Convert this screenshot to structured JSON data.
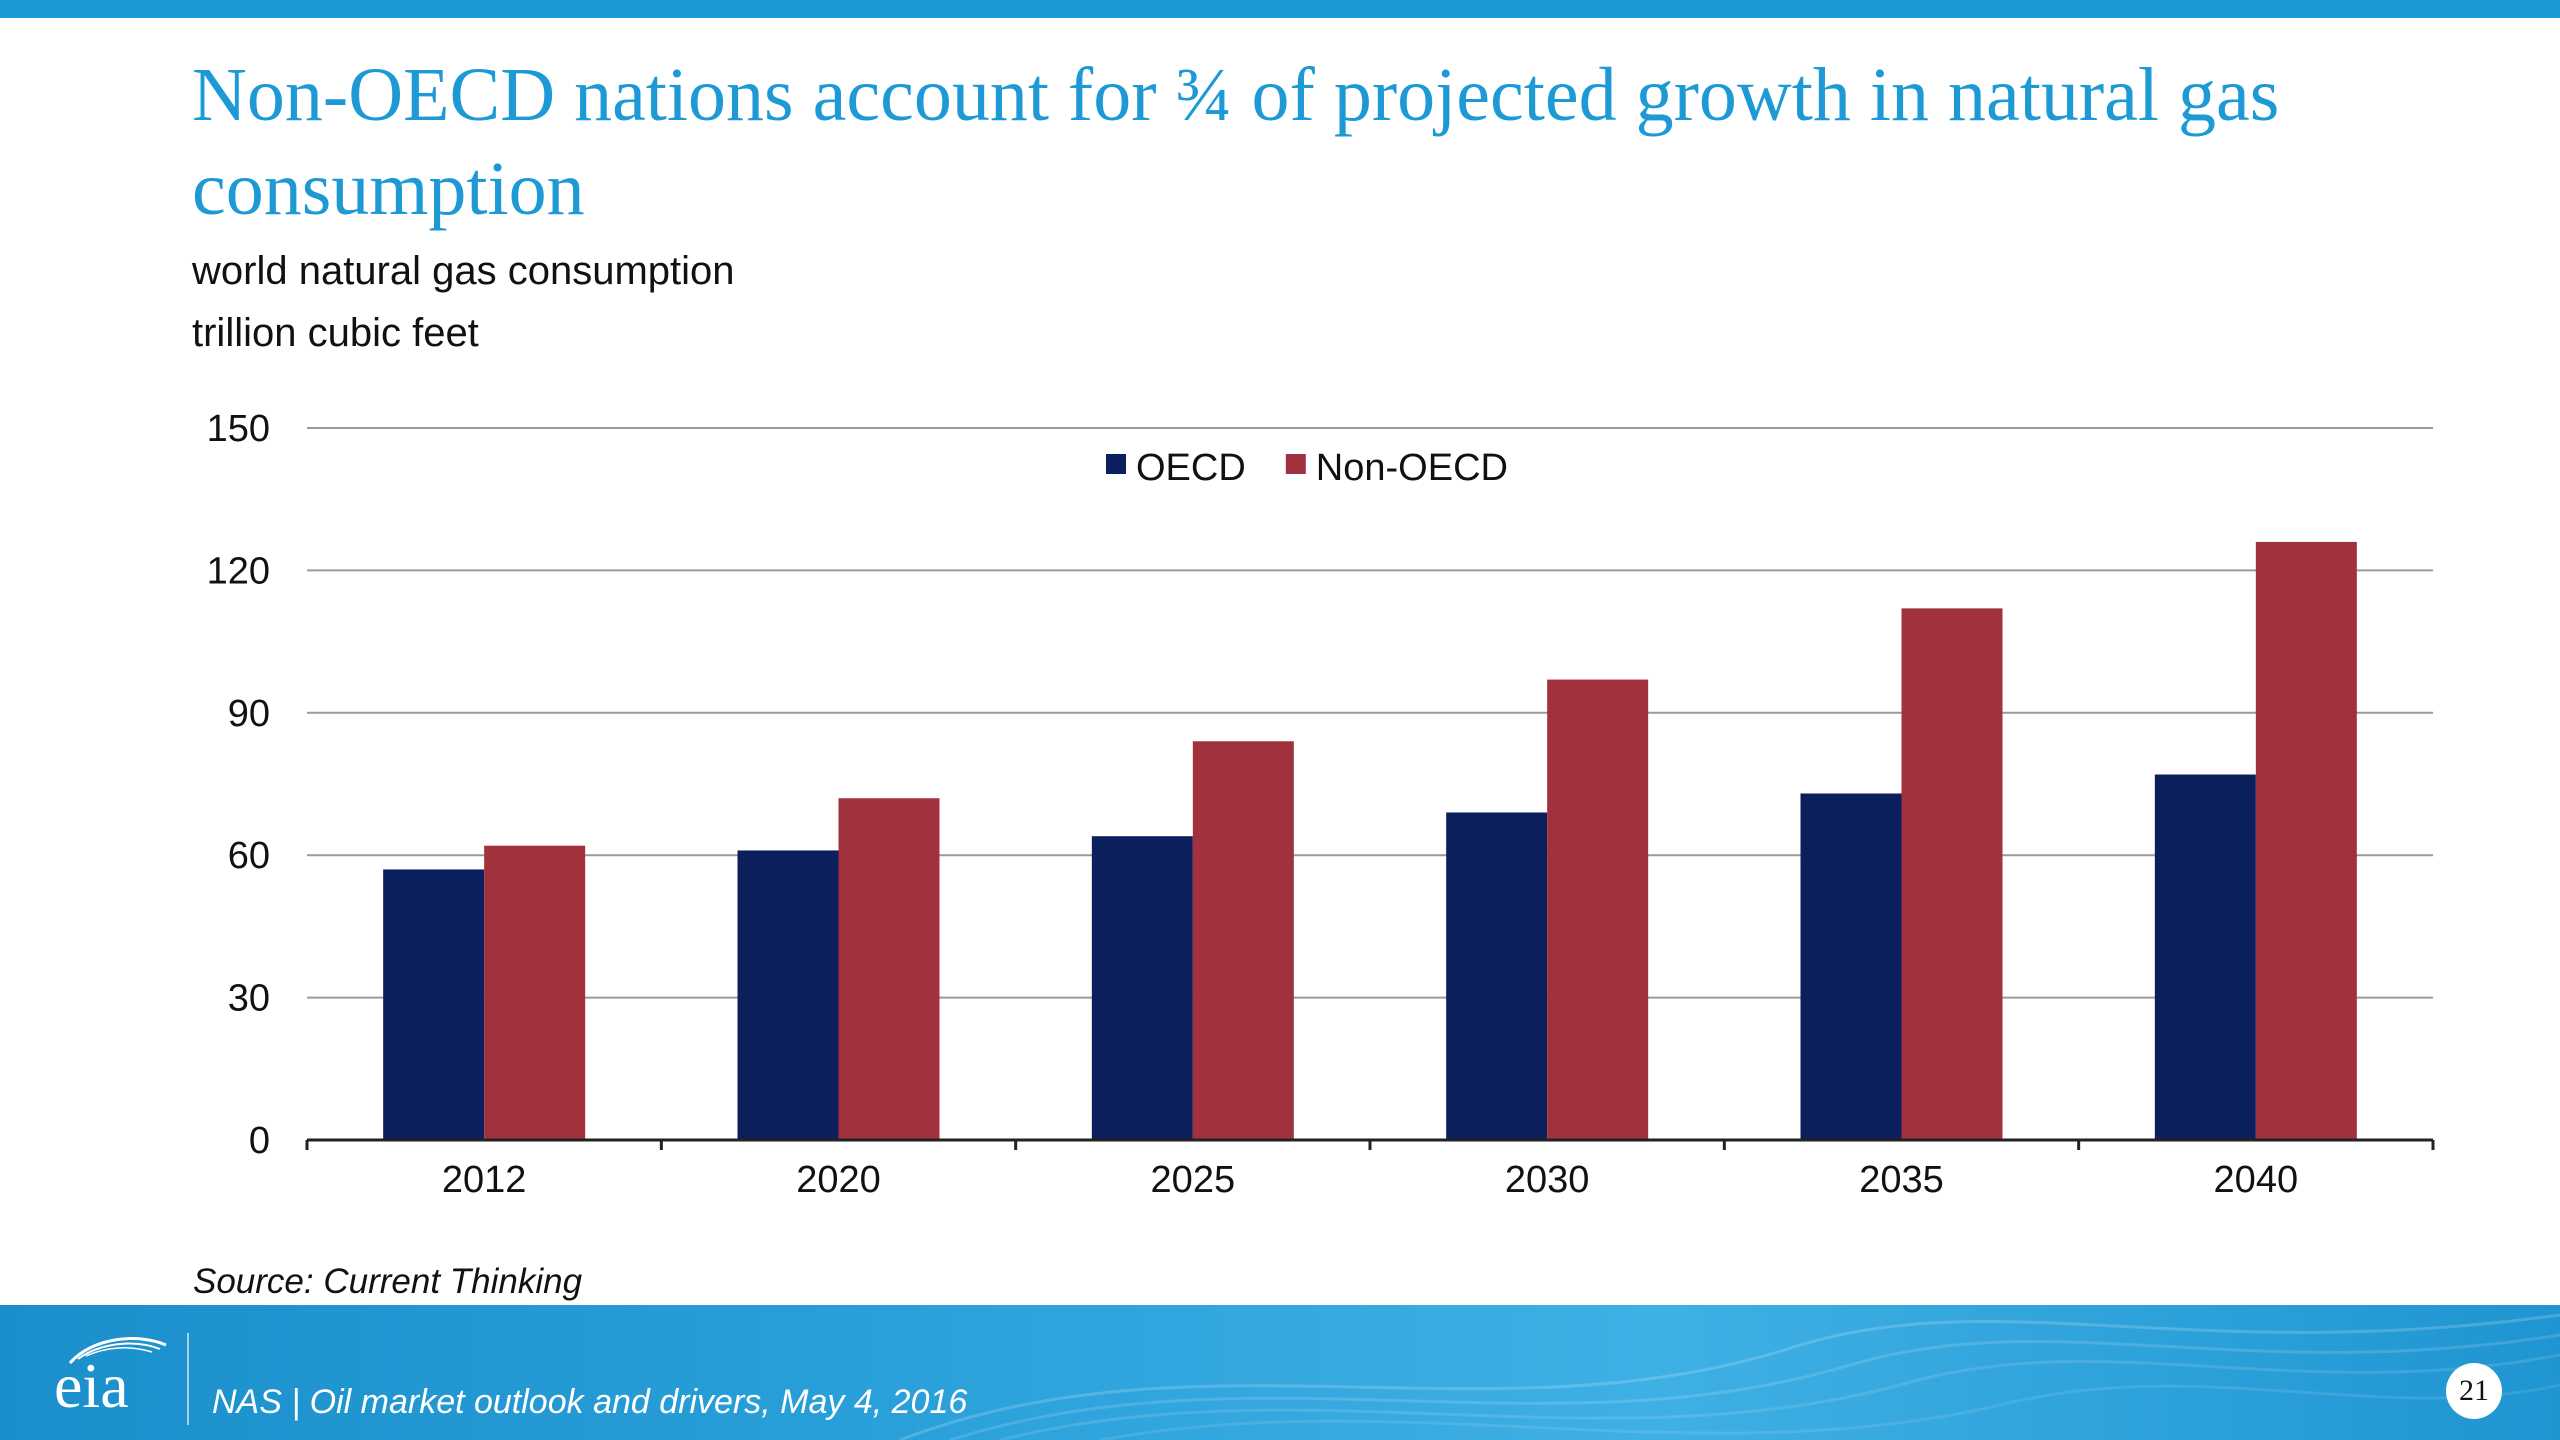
{
  "slide": {
    "title": "Non-OECD nations account for ¾ of projected growth in natural gas consumption",
    "subtitle_line1": "world natural gas consumption",
    "subtitle_line2": "trillion cubic feet",
    "source": "Source:  Current Thinking"
  },
  "footer": {
    "logo_text": "eia",
    "text": "NAS | Oil market outlook and drivers, May 4, 2016",
    "page_number": "21"
  },
  "colors": {
    "brand_blue": "#1d9ad6",
    "oecd": "#0b1f5c",
    "non_oecd": "#a1313d"
  },
  "chart_data": {
    "type": "bar",
    "categories": [
      "2012",
      "2020",
      "2025",
      "2030",
      "2035",
      "2040"
    ],
    "series": [
      {
        "name": "OECD",
        "color": "#0b1f5c",
        "values": [
          57,
          61,
          64,
          69,
          73,
          77
        ]
      },
      {
        "name": "Non-OECD",
        "color": "#a1313d",
        "values": [
          62,
          72,
          84,
          97,
          112,
          126
        ]
      }
    ],
    "ylim": [
      0,
      150
    ],
    "yticks": [
      0,
      30,
      60,
      90,
      120,
      150
    ],
    "grid": true,
    "legend_position": "top-center"
  }
}
